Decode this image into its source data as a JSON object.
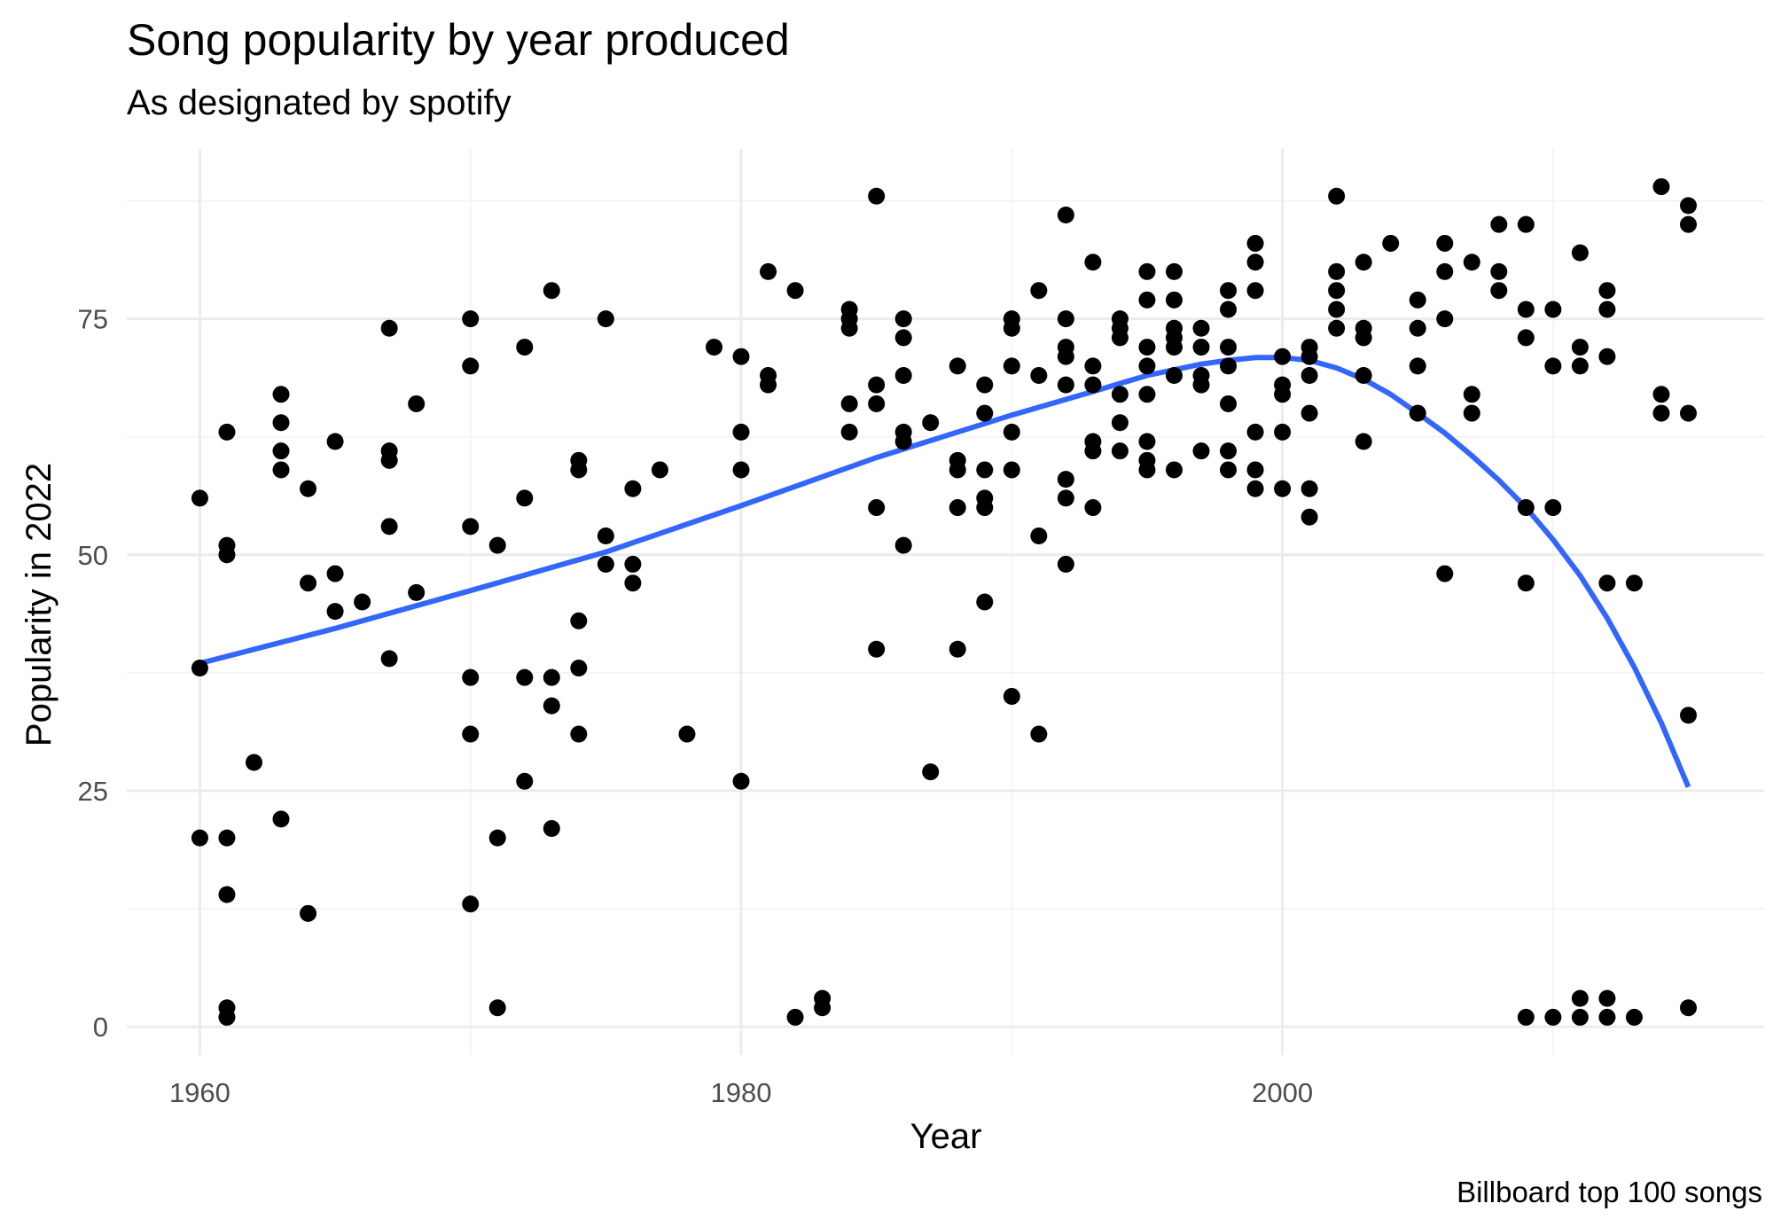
{
  "chart_data": {
    "type": "scatter",
    "title": "Song popularity by year produced",
    "subtitle": "As designated by spotify",
    "caption": "Billboard top 100 songs",
    "xlabel": "Year",
    "ylabel": "Popularity in 2022",
    "xlim": [
      1957.3,
      2017.8
    ],
    "ylim": [
      -3,
      93
    ],
    "x_ticks": [
      1960,
      1980,
      2000
    ],
    "y_ticks": [
      0,
      25,
      50,
      75
    ],
    "x_ticks_minor": [
      1970,
      1990,
      2010
    ],
    "y_ticks_minor": [
      12.5,
      37.5,
      62.5,
      87.5
    ],
    "grid": true,
    "point_color": "#000000",
    "line_color": "#3366FF",
    "grid_major_color": "#EBEBEB",
    "grid_minor_color": "#F2F2F2",
    "points": [
      [
        1960,
        56
      ],
      [
        1960,
        38
      ],
      [
        1960,
        20
      ],
      [
        1961,
        63
      ],
      [
        1961,
        51
      ],
      [
        1961,
        50
      ],
      [
        1961,
        20
      ],
      [
        1961,
        14
      ],
      [
        1961,
        2
      ],
      [
        1961,
        1
      ],
      [
        1962,
        28
      ],
      [
        1963,
        67
      ],
      [
        1963,
        64
      ],
      [
        1963,
        61
      ],
      [
        1963,
        59
      ],
      [
        1963,
        22
      ],
      [
        1964,
        57
      ],
      [
        1964,
        47
      ],
      [
        1964,
        12
      ],
      [
        1965,
        62
      ],
      [
        1965,
        48
      ],
      [
        1965,
        44
      ],
      [
        1966,
        45
      ],
      [
        1967,
        74
      ],
      [
        1967,
        61
      ],
      [
        1967,
        60
      ],
      [
        1967,
        53
      ],
      [
        1967,
        39
      ],
      [
        1968,
        66
      ],
      [
        1968,
        46
      ],
      [
        1970,
        75
      ],
      [
        1970,
        70
      ],
      [
        1970,
        53
      ],
      [
        1970,
        37
      ],
      [
        1970,
        31
      ],
      [
        1970,
        13
      ],
      [
        1971,
        51
      ],
      [
        1971,
        20
      ],
      [
        1971,
        2
      ],
      [
        1972,
        72
      ],
      [
        1972,
        56
      ],
      [
        1972,
        37
      ],
      [
        1972,
        26
      ],
      [
        1973,
        78
      ],
      [
        1973,
        37
      ],
      [
        1973,
        34
      ],
      [
        1973,
        21
      ],
      [
        1974,
        60
      ],
      [
        1974,
        59
      ],
      [
        1974,
        43
      ],
      [
        1974,
        38
      ],
      [
        1974,
        31
      ],
      [
        1975,
        75
      ],
      [
        1975,
        52
      ],
      [
        1975,
        49
      ],
      [
        1976,
        57
      ],
      [
        1976,
        49
      ],
      [
        1976,
        47
      ],
      [
        1977,
        59
      ],
      [
        1978,
        31
      ],
      [
        1979,
        72
      ],
      [
        1980,
        71
      ],
      [
        1980,
        63
      ],
      [
        1980,
        59
      ],
      [
        1980,
        26
      ],
      [
        1981,
        80
      ],
      [
        1981,
        69
      ],
      [
        1981,
        68
      ],
      [
        1982,
        78
      ],
      [
        1982,
        1
      ],
      [
        1983,
        3
      ],
      [
        1983,
        2
      ],
      [
        1984,
        76
      ],
      [
        1984,
        75
      ],
      [
        1984,
        74
      ],
      [
        1984,
        66
      ],
      [
        1984,
        63
      ],
      [
        1985,
        88
      ],
      [
        1985,
        68
      ],
      [
        1985,
        66
      ],
      [
        1985,
        55
      ],
      [
        1985,
        40
      ],
      [
        1986,
        75
      ],
      [
        1986,
        73
      ],
      [
        1986,
        69
      ],
      [
        1986,
        63
      ],
      [
        1986,
        62
      ],
      [
        1986,
        51
      ],
      [
        1987,
        64
      ],
      [
        1987,
        27
      ],
      [
        1988,
        70
      ],
      [
        1988,
        60
      ],
      [
        1988,
        59
      ],
      [
        1988,
        55
      ],
      [
        1988,
        40
      ],
      [
        1989,
        68
      ],
      [
        1989,
        65
      ],
      [
        1989,
        59
      ],
      [
        1989,
        56
      ],
      [
        1989,
        55
      ],
      [
        1989,
        45
      ],
      [
        1990,
        75
      ],
      [
        1990,
        74
      ],
      [
        1990,
        70
      ],
      [
        1990,
        63
      ],
      [
        1990,
        59
      ],
      [
        1990,
        35
      ],
      [
        1991,
        78
      ],
      [
        1991,
        69
      ],
      [
        1991,
        52
      ],
      [
        1991,
        31
      ],
      [
        1992,
        86
      ],
      [
        1992,
        75
      ],
      [
        1992,
        72
      ],
      [
        1992,
        71
      ],
      [
        1992,
        68
      ],
      [
        1992,
        58
      ],
      [
        1992,
        56
      ],
      [
        1992,
        49
      ],
      [
        1993,
        81
      ],
      [
        1993,
        70
      ],
      [
        1993,
        68
      ],
      [
        1993,
        62
      ],
      [
        1993,
        61
      ],
      [
        1993,
        55
      ],
      [
        1994,
        75
      ],
      [
        1994,
        74
      ],
      [
        1994,
        73
      ],
      [
        1994,
        67
      ],
      [
        1994,
        64
      ],
      [
        1994,
        61
      ],
      [
        1995,
        80
      ],
      [
        1995,
        77
      ],
      [
        1995,
        72
      ],
      [
        1995,
        70
      ],
      [
        1995,
        67
      ],
      [
        1995,
        62
      ],
      [
        1995,
        60
      ],
      [
        1995,
        59
      ],
      [
        1996,
        80
      ],
      [
        1996,
        77
      ],
      [
        1996,
        74
      ],
      [
        1996,
        73
      ],
      [
        1996,
        72
      ],
      [
        1996,
        69
      ],
      [
        1996,
        59
      ],
      [
        1997,
        74
      ],
      [
        1997,
        72
      ],
      [
        1997,
        69
      ],
      [
        1997,
        68
      ],
      [
        1997,
        61
      ],
      [
        1998,
        78
      ],
      [
        1998,
        76
      ],
      [
        1998,
        72
      ],
      [
        1998,
        70
      ],
      [
        1998,
        66
      ],
      [
        1998,
        61
      ],
      [
        1998,
        59
      ],
      [
        1999,
        83
      ],
      [
        1999,
        81
      ],
      [
        1999,
        78
      ],
      [
        1999,
        63
      ],
      [
        1999,
        59
      ],
      [
        1999,
        57
      ],
      [
        2000,
        71
      ],
      [
        2000,
        68
      ],
      [
        2000,
        67
      ],
      [
        2000,
        63
      ],
      [
        2000,
        57
      ],
      [
        2001,
        72
      ],
      [
        2001,
        71
      ],
      [
        2001,
        69
      ],
      [
        2001,
        65
      ],
      [
        2001,
        57
      ],
      [
        2001,
        54
      ],
      [
        2002,
        88
      ],
      [
        2002,
        80
      ],
      [
        2002,
        78
      ],
      [
        2002,
        76
      ],
      [
        2002,
        74
      ],
      [
        2003,
        81
      ],
      [
        2003,
        74
      ],
      [
        2003,
        73
      ],
      [
        2003,
        69
      ],
      [
        2003,
        62
      ],
      [
        2004,
        83
      ],
      [
        2005,
        77
      ],
      [
        2005,
        74
      ],
      [
        2005,
        70
      ],
      [
        2005,
        65
      ],
      [
        2006,
        83
      ],
      [
        2006,
        80
      ],
      [
        2006,
        75
      ],
      [
        2006,
        48
      ],
      [
        2007,
        81
      ],
      [
        2007,
        67
      ],
      [
        2007,
        65
      ],
      [
        2008,
        85
      ],
      [
        2008,
        80
      ],
      [
        2008,
        78
      ],
      [
        2009,
        85
      ],
      [
        2009,
        76
      ],
      [
        2009,
        73
      ],
      [
        2009,
        55
      ],
      [
        2009,
        47
      ],
      [
        2009,
        1
      ],
      [
        2010,
        76
      ],
      [
        2010,
        70
      ],
      [
        2010,
        55
      ],
      [
        2010,
        1
      ],
      [
        2011,
        82
      ],
      [
        2011,
        72
      ],
      [
        2011,
        70
      ],
      [
        2011,
        3
      ],
      [
        2011,
        1
      ],
      [
        2012,
        78
      ],
      [
        2012,
        76
      ],
      [
        2012,
        71
      ],
      [
        2012,
        47
      ],
      [
        2012,
        3
      ],
      [
        2012,
        1
      ],
      [
        2013,
        47
      ],
      [
        2013,
        1
      ],
      [
        2014,
        89
      ],
      [
        2014,
        67
      ],
      [
        2014,
        65
      ],
      [
        2015,
        87
      ],
      [
        2015,
        85
      ],
      [
        2015,
        65
      ],
      [
        2015,
        33
      ],
      [
        2015,
        2
      ]
    ],
    "smooth": [
      [
        1960,
        38.5
      ],
      [
        1965,
        42.2
      ],
      [
        1970,
        46.2
      ],
      [
        1975,
        50.3
      ],
      [
        1980,
        55.2
      ],
      [
        1985,
        60.3
      ],
      [
        1990,
        64.8
      ],
      [
        1993,
        67.3
      ],
      [
        1995,
        69.0
      ],
      [
        1997,
        70.2
      ],
      [
        1998,
        70.6
      ],
      [
        1999,
        70.9
      ],
      [
        2000,
        70.9
      ],
      [
        2001,
        70.6
      ],
      [
        2002,
        69.8
      ],
      [
        2003,
        68.6
      ],
      [
        2004,
        67.0
      ],
      [
        2005,
        65.0
      ],
      [
        2006,
        62.9
      ],
      [
        2007,
        60.5
      ],
      [
        2008,
        57.9
      ],
      [
        2009,
        55.0
      ],
      [
        2010,
        51.6
      ],
      [
        2011,
        47.8
      ],
      [
        2012,
        43.3
      ],
      [
        2013,
        38.1
      ],
      [
        2014,
        32.2
      ],
      [
        2015,
        25.4
      ]
    ]
  }
}
